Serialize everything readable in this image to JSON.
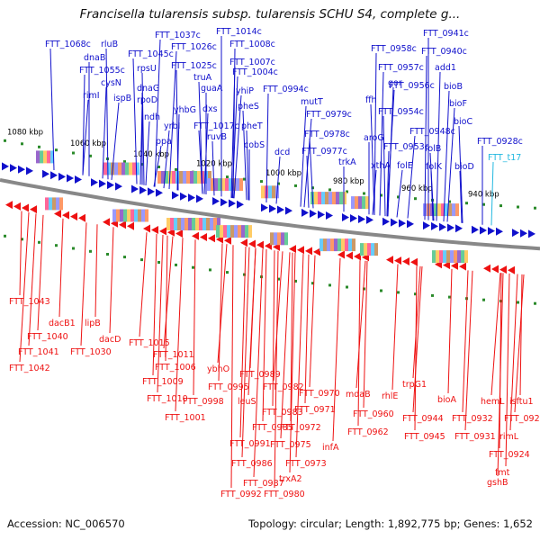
{
  "title": "Francisella tularensis subsp. tularensis SCHU S4, complete g...",
  "footer": {
    "accession": "Accession: NC_006570",
    "stats": "Topology: circular; Length: 1,892,775 bp; Genes: 1,652"
  },
  "colors": {
    "forward": "#1010cc",
    "reverse": "#ee1111",
    "rna": "#22b8e0",
    "backbone": "#888888",
    "dots": "#2a8a2a"
  },
  "kbp_labels": [
    "1080 kbp",
    "1060 kbp",
    "1040 kbp",
    "1020 kbp",
    "1000 kbp",
    "980 kbp",
    "960 kbp",
    "940 kbp"
  ],
  "top_labels": [
    {
      "t": "FTT_1068c",
      "c": "f"
    },
    {
      "t": "rluB",
      "c": "f"
    },
    {
      "t": "dnaB",
      "c": "f"
    },
    {
      "t": "FTT_1055c",
      "c": "f"
    },
    {
      "t": "cysN",
      "c": "f"
    },
    {
      "t": "rimI",
      "c": "f"
    },
    {
      "t": "ispB",
      "c": "f"
    },
    {
      "t": "FTT_1045c",
      "c": "f"
    },
    {
      "t": "rpsU",
      "c": "f"
    },
    {
      "t": "dnaG",
      "c": "f"
    },
    {
      "t": "rpoD",
      "c": "f"
    },
    {
      "t": "ndh",
      "c": "f"
    },
    {
      "t": "FTT_1037c",
      "c": "f"
    },
    {
      "t": "FTT_1026c",
      "c": "f"
    },
    {
      "t": "truA",
      "c": "f"
    },
    {
      "t": "FTT_1025c",
      "c": "f"
    },
    {
      "t": "guaA",
      "c": "f"
    },
    {
      "t": "yhbG",
      "c": "f"
    },
    {
      "t": "dxs",
      "c": "f"
    },
    {
      "t": "yrbI",
      "c": "f"
    },
    {
      "t": "ppa",
      "c": "f"
    },
    {
      "t": "FTT_1017c",
      "c": "f"
    },
    {
      "t": "ruvB",
      "c": "f"
    },
    {
      "t": "FTT_1014c",
      "c": "f"
    },
    {
      "t": "FTT_1008c",
      "c": "f"
    },
    {
      "t": "FTT_1007c",
      "c": "f"
    },
    {
      "t": "FTT_1004c",
      "c": "f"
    },
    {
      "t": "yhiP",
      "c": "f"
    },
    {
      "t": "pheS",
      "c": "f"
    },
    {
      "t": "pheT",
      "c": "f"
    },
    {
      "t": "cobS",
      "c": "f"
    },
    {
      "t": "FTT_0994c",
      "c": "f"
    },
    {
      "t": "dcd",
      "c": "f"
    },
    {
      "t": "mutT",
      "c": "f"
    },
    {
      "t": "FTT_0979c",
      "c": "f"
    },
    {
      "t": "FTT_0978c",
      "c": "f"
    },
    {
      "t": "FTT_0977c",
      "c": "f"
    },
    {
      "t": "trkA",
      "c": "f"
    },
    {
      "t": "FTT_0958c",
      "c": "f"
    },
    {
      "t": "FTT_0957c",
      "c": "f"
    },
    {
      "t": "gor",
      "c": "f"
    },
    {
      "t": "FTT_0956c",
      "c": "f"
    },
    {
      "t": "ffh",
      "c": "f"
    },
    {
      "t": "FTT_0954c",
      "c": "f"
    },
    {
      "t": "aroG",
      "c": "f"
    },
    {
      "t": "FTT_0953c",
      "c": "f"
    },
    {
      "t": "xthA",
      "c": "f"
    },
    {
      "t": "folE",
      "c": "f"
    },
    {
      "t": "FTT_0948c",
      "c": "f"
    },
    {
      "t": "folB",
      "c": "f"
    },
    {
      "t": "folK",
      "c": "f"
    },
    {
      "t": "FTT_0941c",
      "c": "f"
    },
    {
      "t": "FTT_0940c",
      "c": "f"
    },
    {
      "t": "add1",
      "c": "f"
    },
    {
      "t": "bioB",
      "c": "f"
    },
    {
      "t": "bioF",
      "c": "f"
    },
    {
      "t": "bioC",
      "c": "f"
    },
    {
      "t": "bioD",
      "c": "f"
    },
    {
      "t": "FTT_0928c",
      "c": "f"
    },
    {
      "t": "FTT_t17",
      "c": "r"
    }
  ],
  "bottom_labels": [
    "FTT_1043",
    "dacB1",
    "FTT_1040",
    "FTT_1041",
    "FTT_1042",
    "lipB",
    "dacD",
    "FTT_1030",
    "FTT_1015",
    "FTT_1011",
    "FTT_1006",
    "FTT_1009",
    "FTT_1010",
    "FTT_1001",
    "ybhO",
    "FTT_0998",
    "FTT_0995",
    "FTT_0989",
    "leuS",
    "FTT_0982",
    "FTT_0983",
    "FTT_0985",
    "FTT_0991",
    "FTT_0986",
    "FTT_0987",
    "FTT_0992",
    "FTT_0980",
    "trxA2",
    "FTT_0973",
    "FTT_0975",
    "FTT_0972",
    "FTT_0971",
    "FTT_0970",
    "infA",
    "mdaB",
    "FTT_0962",
    "FTT_0960",
    "rhlE",
    "trpG1",
    "FTT_0944",
    "FTT_0945",
    "bioA",
    "FTT_0932",
    "FTT_0931",
    "hemL",
    "FTT_0924",
    "fmt",
    "gshB",
    "rimL",
    "FTT_0922",
    "isftu1"
  ]
}
